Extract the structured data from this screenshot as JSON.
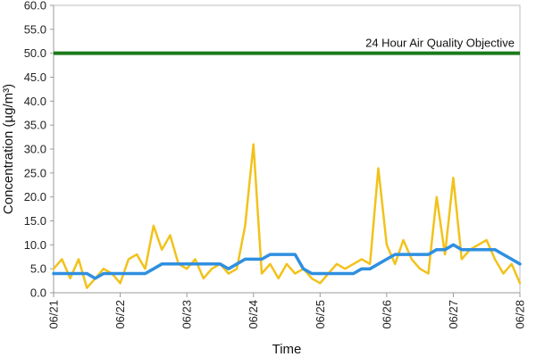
{
  "chart_data": {
    "type": "line",
    "title": "",
    "xlabel": "Time",
    "ylabel": "Concentration (µg/m³)",
    "ylim": [
      0,
      60
    ],
    "yticks": [
      "0.0",
      "5.0",
      "10.0",
      "15.0",
      "20.0",
      "25.0",
      "30.0",
      "35.0",
      "40.0",
      "45.0",
      "50.0",
      "55.0",
      "60.0"
    ],
    "xrange": [
      "06/21",
      "06/28"
    ],
    "xticks": [
      "06/21",
      "06/22",
      "06/23",
      "06/24",
      "06/25",
      "06/26",
      "06/27",
      "06/28"
    ],
    "grid": false,
    "legend": "none",
    "objective": {
      "value": 50,
      "label": "24 Hour Air Quality Objective",
      "color": "#1a7a1a"
    },
    "series": [
      {
        "color": "#f2c21b",
        "x": [
          "06/21 00:00",
          "06/21 03:00",
          "06/21 06:00",
          "06/21 09:00",
          "06/21 12:00",
          "06/21 15:00",
          "06/21 18:00",
          "06/21 21:00",
          "06/22 00:00",
          "06/22 03:00",
          "06/22 06:00",
          "06/22 09:00",
          "06/22 12:00",
          "06/22 15:00",
          "06/22 18:00",
          "06/22 21:00",
          "06/23 00:00",
          "06/23 03:00",
          "06/23 06:00",
          "06/23 09:00",
          "06/23 12:00",
          "06/23 15:00",
          "06/23 18:00",
          "06/23 21:00",
          "06/24 00:00",
          "06/24 03:00",
          "06/24 06:00",
          "06/24 09:00",
          "06/24 12:00",
          "06/24 15:00",
          "06/24 18:00",
          "06/24 21:00",
          "06/25 00:00",
          "06/25 03:00",
          "06/25 06:00",
          "06/25 09:00",
          "06/25 12:00",
          "06/25 15:00",
          "06/25 18:00",
          "06/25 21:00",
          "06/26 00:00",
          "06/26 03:00",
          "06/26 06:00",
          "06/26 09:00",
          "06/26 12:00",
          "06/26 15:00",
          "06/26 18:00",
          "06/26 21:00",
          "06/27 00:00",
          "06/27 03:00",
          "06/27 06:00",
          "06/27 09:00",
          "06/27 12:00",
          "06/27 15:00",
          "06/27 18:00",
          "06/27 21:00",
          "06/28 00:00"
        ],
        "y": [
          5,
          7,
          3,
          7,
          1,
          3,
          5,
          4,
          2,
          7,
          8,
          5,
          14,
          9,
          12,
          6,
          5,
          7,
          3,
          5,
          6,
          4,
          5,
          14,
          31,
          4,
          6,
          3,
          6,
          4,
          5,
          3,
          2,
          4,
          6,
          5,
          6,
          7,
          6,
          26,
          10,
          6,
          11,
          7,
          5,
          4,
          20,
          8,
          24,
          7,
          9,
          10,
          11,
          7,
          4,
          6,
          2
        ]
      },
      {
        "color": "#2f8fe0",
        "x": [
          "06/21 00:00",
          "06/21 03:00",
          "06/21 06:00",
          "06/21 09:00",
          "06/21 12:00",
          "06/21 15:00",
          "06/21 18:00",
          "06/21 21:00",
          "06/22 00:00",
          "06/22 03:00",
          "06/22 06:00",
          "06/22 09:00",
          "06/22 12:00",
          "06/22 15:00",
          "06/22 18:00",
          "06/22 21:00",
          "06/23 00:00",
          "06/23 03:00",
          "06/23 06:00",
          "06/23 09:00",
          "06/23 12:00",
          "06/23 15:00",
          "06/23 18:00",
          "06/23 21:00",
          "06/24 00:00",
          "06/24 03:00",
          "06/24 06:00",
          "06/24 09:00",
          "06/24 12:00",
          "06/24 15:00",
          "06/24 18:00",
          "06/24 21:00",
          "06/25 00:00",
          "06/25 03:00",
          "06/25 06:00",
          "06/25 09:00",
          "06/25 12:00",
          "06/25 15:00",
          "06/25 18:00",
          "06/25 21:00",
          "06/26 00:00",
          "06/26 03:00",
          "06/26 06:00",
          "06/26 09:00",
          "06/26 12:00",
          "06/26 15:00",
          "06/26 18:00",
          "06/26 21:00",
          "06/27 00:00",
          "06/27 03:00",
          "06/27 06:00",
          "06/27 09:00",
          "06/27 12:00",
          "06/27 15:00",
          "06/27 18:00",
          "06/27 21:00",
          "06/28 00:00"
        ],
        "y": [
          4,
          4,
          4,
          4,
          4,
          3,
          4,
          4,
          4,
          4,
          4,
          4,
          5,
          6,
          6,
          6,
          6,
          6,
          6,
          6,
          6,
          5,
          6,
          7,
          7,
          7,
          8,
          8,
          8,
          8,
          5,
          4,
          4,
          4,
          4,
          4,
          4,
          5,
          5,
          6,
          7,
          8,
          8,
          8,
          8,
          8,
          9,
          9,
          10,
          9,
          9,
          9,
          9,
          9,
          8,
          7,
          6
        ]
      }
    ]
  }
}
